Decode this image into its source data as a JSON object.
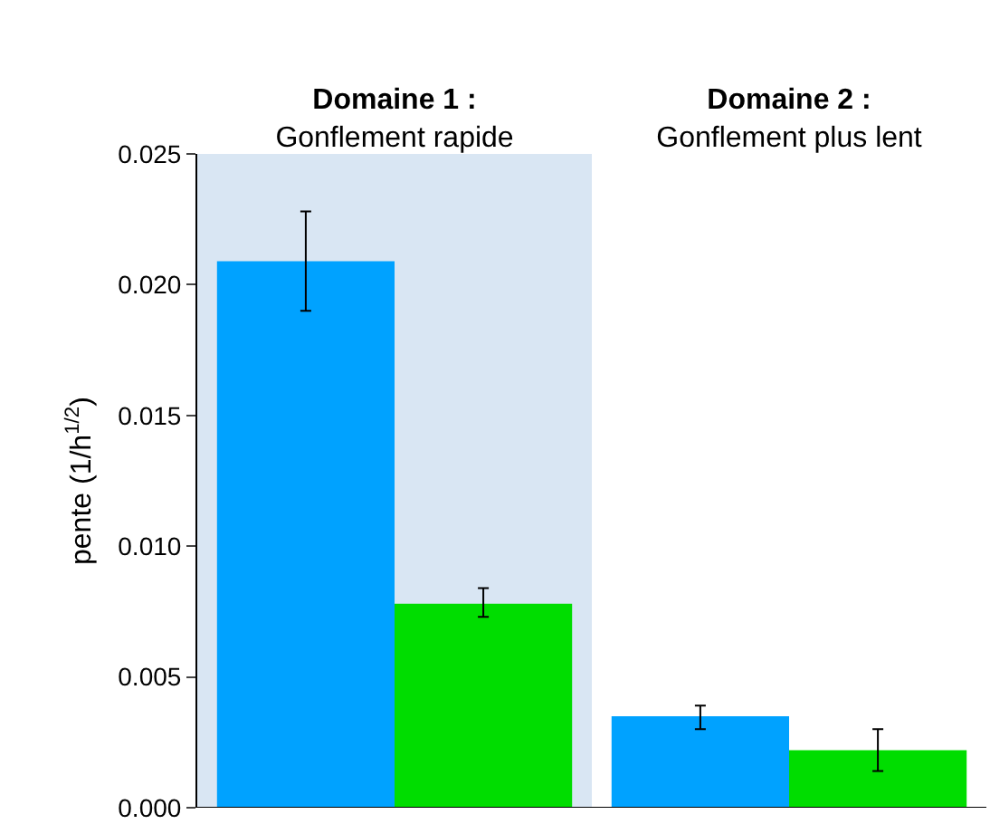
{
  "chart_data": {
    "type": "bar",
    "ylabel": "pente (1/h$^{1/2}$)",
    "categories": [
      "Domaine 1 :\nGonflement rapide",
      "Domaine 2 :\nGonflement plus lent"
    ],
    "series": [
      {
        "color": "#00a2ff",
        "values": [
          0.0209,
          0.0035
        ],
        "errors": [
          [
            0.019,
            0.0228
          ],
          [
            0.003,
            0.0039
          ]
        ]
      },
      {
        "color": "#00dd00",
        "values": [
          0.0078,
          0.0022
        ],
        "errors": [
          [
            0.0073,
            0.0084
          ],
          [
            0.0014,
            0.003
          ]
        ]
      }
    ],
    "bands": [
      {
        "axis": "x",
        "from": "Domaine 1 :\nGonflement rapide",
        "to": "Domaine 1 :\nGonflement rapide",
        "color": "#d9e6f3"
      }
    ],
    "ylim": [
      0,
      0.025
    ],
    "yticks": [
      {
        "value": 0,
        "label": "0.000"
      },
      {
        "value": 0.005,
        "label": "0.005"
      },
      {
        "value": 0.01,
        "label": "0.010"
      },
      {
        "value": 0.015,
        "label": "0.015"
      },
      {
        "value": 0.02,
        "label": "0.020"
      },
      {
        "value": 0.025,
        "label": "0.025"
      }
    ],
    "grid": false
  }
}
